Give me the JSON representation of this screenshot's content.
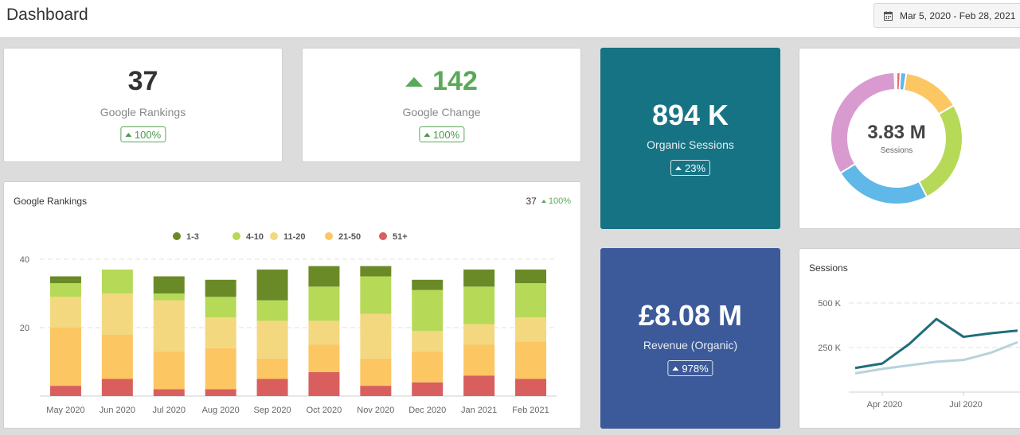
{
  "header": {
    "title": "Dashboard",
    "date_range": "Mar 5, 2020 - Feb 28, 2021"
  },
  "kpis": {
    "rankings": {
      "value": "37",
      "label": "Google Rankings",
      "change": "100%"
    },
    "change": {
      "value": "142",
      "label": "Google Change",
      "change": "100%"
    },
    "sessions": {
      "value": "894 K",
      "label": "Organic Sessions",
      "change": "23%",
      "color": "#167384"
    },
    "revenue": {
      "value": "£8.08 M",
      "label": "Revenue (Organic)",
      "change": "978%",
      "color": "#3c5a9a"
    }
  },
  "donut": {
    "center_value": "3.83 M",
    "center_label": "Sessions",
    "slices": [
      {
        "value": 1,
        "color": "#e86d6d"
      },
      {
        "value": 1.5,
        "color": "#5fb8e8"
      },
      {
        "value": 15,
        "color": "#fcc662"
      },
      {
        "value": 27,
        "color": "#b6d957"
      },
      {
        "value": 25,
        "color": "#5fb8e8"
      },
      {
        "value": 35,
        "color": "#d99ad0"
      },
      {
        "value": 0.5,
        "color": "#e0e0e0"
      }
    ]
  },
  "rankings_chart": {
    "title": "Google Rankings",
    "summary_value": "37",
    "summary_change": "100%"
  },
  "sessions_chart": {
    "title": "Sessions"
  },
  "chart_data": [
    {
      "type": "bar",
      "title": "Google Rankings",
      "stacked": true,
      "categories": [
        "May 2020",
        "Jun 2020",
        "Jul 2020",
        "Aug 2020",
        "Sep 2020",
        "Oct 2020",
        "Nov 2020",
        "Dec 2020",
        "Jan 2021",
        "Feb 2021"
      ],
      "series": [
        {
          "name": "51+",
          "color": "#d95f5f",
          "values": [
            3,
            5,
            2,
            2,
            5,
            7,
            3,
            4,
            6,
            5
          ]
        },
        {
          "name": "21-50",
          "color": "#fcc662",
          "values": [
            17,
            13,
            11,
            12,
            6,
            8,
            8,
            9,
            9,
            11
          ]
        },
        {
          "name": "11-20",
          "color": "#f3d880",
          "values": [
            9,
            12,
            15,
            9,
            11,
            7,
            13,
            6,
            6,
            7
          ]
        },
        {
          "name": "4-10",
          "color": "#b6d957",
          "values": [
            4,
            7,
            2,
            6,
            6,
            10,
            11,
            12,
            11,
            10
          ]
        },
        {
          "name": "1-3",
          "color": "#6a8a28",
          "values": [
            2,
            0,
            5,
            5,
            9,
            6,
            3,
            3,
            5,
            4
          ]
        }
      ],
      "yticks": [
        "20",
        "40"
      ],
      "ylim": [
        0,
        40
      ],
      "grid": true,
      "legend": "top"
    },
    {
      "type": "line",
      "title": "Sessions",
      "x": [
        "Mar 2020",
        "Apr 2020",
        "May 2020",
        "Jun 2020",
        "Jul 2020",
        "Aug 2020",
        "Sep 2020"
      ],
      "xticks": [
        "Apr 2020",
        "Jul 2020"
      ],
      "yticks": [
        "250 K",
        "500 K"
      ],
      "ylim": [
        0,
        575000
      ],
      "series": [
        {
          "name": "",
          "color": "#1f6e7a",
          "values": [
            135000,
            160000,
            270000,
            410000,
            310000,
            330000,
            345000
          ]
        },
        {
          "name": "",
          "color": "#b7d3dc",
          "values": [
            105000,
            130000,
            150000,
            170000,
            180000,
            220000,
            280000
          ]
        }
      ],
      "grid": true
    }
  ]
}
